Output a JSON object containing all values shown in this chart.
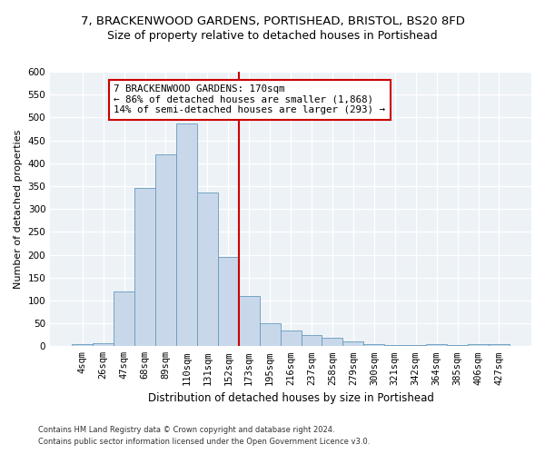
{
  "title1": "7, BRACKENWOOD GARDENS, PORTISHEAD, BRISTOL, BS20 8FD",
  "title2": "Size of property relative to detached houses in Portishead",
  "xlabel": "Distribution of detached houses by size in Portishead",
  "ylabel": "Number of detached properties",
  "footer1": "Contains HM Land Registry data © Crown copyright and database right 2024.",
  "footer2": "Contains public sector information licensed under the Open Government Licence v3.0.",
  "categories": [
    "4sqm",
    "26sqm",
    "47sqm",
    "68sqm",
    "89sqm",
    "110sqm",
    "131sqm",
    "152sqm",
    "173sqm",
    "195sqm",
    "216sqm",
    "237sqm",
    "258sqm",
    "279sqm",
    "300sqm",
    "321sqm",
    "342sqm",
    "364sqm",
    "385sqm",
    "406sqm",
    "427sqm"
  ],
  "values": [
    5,
    7,
    120,
    345,
    420,
    487,
    337,
    195,
    110,
    50,
    35,
    25,
    18,
    10,
    5,
    3,
    2,
    5,
    2,
    5,
    5
  ],
  "bar_color": "#c8d8ea",
  "bar_edge_color": "#6699bb",
  "vline_color": "#cc0000",
  "annotation_text": "7 BRACKENWOOD GARDENS: 170sqm\n← 86% of detached houses are smaller (1,868)\n14% of semi-detached houses are larger (293) →",
  "annotation_box_color": "#cc0000",
  "bg_color": "#edf2f7",
  "ylim_max": 600,
  "yticks": [
    0,
    50,
    100,
    150,
    200,
    250,
    300,
    350,
    400,
    450,
    500,
    550,
    600
  ],
  "title1_fontsize": 9.5,
  "title2_fontsize": 9,
  "xlabel_fontsize": 8.5,
  "ylabel_fontsize": 8,
  "annotation_fontsize": 7.8,
  "tick_fontsize": 7.5,
  "footer_fontsize": 6.0
}
